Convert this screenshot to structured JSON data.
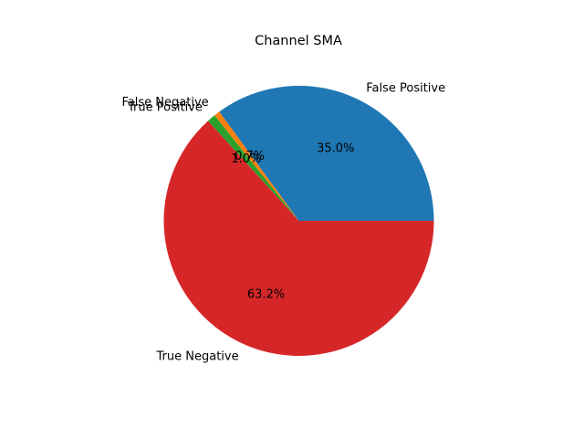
{
  "chart_data": {
    "type": "pie",
    "title": "Channel SMA",
    "categories": [
      "False Positive",
      "False Negative",
      "True Positive",
      "True Negative"
    ],
    "values": [
      35.0,
      0.7,
      1.0,
      63.2
    ],
    "value_labels": [
      "35.0%",
      "0.7%",
      "1.0%",
      "63.2%"
    ],
    "colors": [
      "#1f77b4",
      "#ff7f0e",
      "#2ca02c",
      "#d62728"
    ],
    "start_angle_deg": 0,
    "direction": "counterclockwise",
    "legend": "none"
  }
}
